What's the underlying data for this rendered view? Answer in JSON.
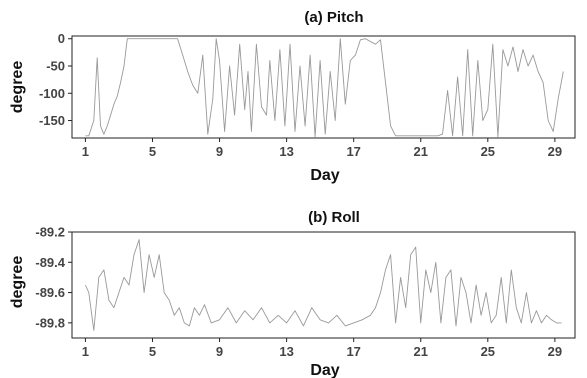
{
  "chart_data": [
    {
      "type": "line",
      "title": "(a) Pitch",
      "xlabel": "Day",
      "ylabel": "degree",
      "xlim": [
        0.2,
        30.2
      ],
      "ylim": [
        -182,
        5
      ],
      "xticks": [
        1,
        5,
        9,
        13,
        17,
        21,
        25,
        29
      ],
      "yticks": [
        0,
        -50,
        -100,
        -150
      ],
      "ytick_labels": [
        "0",
        "-50",
        "-100",
        "-150"
      ],
      "grid": false,
      "series": [
        {
          "color": "#999999",
          "x": [
            1,
            1.2,
            1.5,
            1.7,
            1.9,
            2.1,
            2.3,
            2.5,
            2.7,
            2.9,
            3.1,
            3.3,
            3.5,
            4,
            4.5,
            5,
            5.5,
            6,
            6.5,
            6.8,
            7.1,
            7.4,
            7.7,
            8.0,
            8.3,
            8.6,
            8.8,
            9.0,
            9.3,
            9.6,
            9.9,
            10.2,
            10.5,
            10.7,
            10.9,
            11.2,
            11.5,
            11.8,
            12.0,
            12.3,
            12.6,
            12.9,
            13.2,
            13.5,
            13.8,
            14.1,
            14.4,
            14.7,
            15.0,
            15.3,
            15.6,
            15.9,
            16.2,
            16.5,
            16.8,
            17.1,
            17.4,
            17.7,
            18.0,
            18.3,
            18.6,
            18.9,
            19.2,
            19.5,
            19.8,
            20.1,
            20.5,
            21,
            21.5,
            22,
            22.3,
            22.6,
            22.9,
            23.2,
            23.5,
            23.8,
            24.1,
            24.4,
            24.7,
            25.0,
            25.3,
            25.6,
            25.9,
            26.2,
            26.5,
            26.8,
            27.1,
            27.4,
            27.7,
            28.0,
            28.3,
            28.6,
            28.9,
            29.2,
            29.5
          ],
          "y": [
            -178,
            -178,
            -150,
            -35,
            -160,
            -175,
            -160,
            -140,
            -120,
            -105,
            -80,
            -50,
            0,
            0,
            0,
            0,
            0,
            0,
            0,
            -30,
            -60,
            -85,
            -100,
            -30,
            -175,
            -110,
            0,
            -40,
            -170,
            -50,
            -140,
            -10,
            -130,
            -60,
            -170,
            -10,
            -125,
            -140,
            -40,
            -150,
            -20,
            -160,
            -10,
            -170,
            -50,
            -160,
            -30,
            -180,
            -40,
            -175,
            -60,
            -150,
            0,
            -120,
            -40,
            -30,
            -2,
            0,
            -5,
            -10,
            -2,
            -80,
            -160,
            -178,
            -178,
            -178,
            -178,
            -178,
            -178,
            -178,
            -175,
            -95,
            -178,
            -70,
            -178,
            -20,
            -178,
            -40,
            -150,
            -130,
            -10,
            -180,
            -20,
            -50,
            -15,
            -60,
            -20,
            -50,
            -30,
            -60,
            -80,
            -150,
            -170,
            -110,
            -60
          ]
        }
      ]
    },
    {
      "type": "line",
      "title": "(b) Roll",
      "xlabel": "Day",
      "ylabel": "degree",
      "xlim": [
        0.2,
        30.2
      ],
      "ylim": [
        -89.9,
        -89.2
      ],
      "xticks": [
        1,
        5,
        9,
        13,
        17,
        21,
        25,
        29
      ],
      "yticks": [
        -89.2,
        -89.4,
        -89.6,
        -89.8
      ],
      "ytick_labels": [
        "-89.2",
        "-89.4",
        "-89.6",
        "-89.8"
      ],
      "grid": false,
      "series": [
        {
          "color": "#999999",
          "x": [
            1,
            1.2,
            1.5,
            1.8,
            2.1,
            2.4,
            2.7,
            3.0,
            3.3,
            3.6,
            3.9,
            4.2,
            4.5,
            4.8,
            5.1,
            5.4,
            5.7,
            6.0,
            6.3,
            6.6,
            6.9,
            7.2,
            7.5,
            7.8,
            8.1,
            8.5,
            9,
            9.5,
            10,
            10.5,
            11,
            11.5,
            12,
            12.5,
            13,
            13.5,
            14,
            14.5,
            15,
            15.5,
            16,
            16.5,
            17,
            17.5,
            18.0,
            18.3,
            18.6,
            18.9,
            19.2,
            19.5,
            19.8,
            20.1,
            20.4,
            20.7,
            21.0,
            21.3,
            21.6,
            21.9,
            22.2,
            22.5,
            22.8,
            23.1,
            23.4,
            23.7,
            24.0,
            24.3,
            24.6,
            24.9,
            25.2,
            25.5,
            25.8,
            26.1,
            26.4,
            26.7,
            27.0,
            27.3,
            27.6,
            27.9,
            28.2,
            28.5,
            28.8,
            29.1,
            29.4
          ],
          "y": [
            -89.55,
            -89.6,
            -89.85,
            -89.5,
            -89.45,
            -89.65,
            -89.7,
            -89.6,
            -89.5,
            -89.55,
            -89.35,
            -89.25,
            -89.6,
            -89.35,
            -89.5,
            -89.35,
            -89.6,
            -89.65,
            -89.75,
            -89.7,
            -89.8,
            -89.82,
            -89.7,
            -89.75,
            -89.68,
            -89.8,
            -89.78,
            -89.7,
            -89.8,
            -89.72,
            -89.78,
            -89.7,
            -89.8,
            -89.75,
            -89.8,
            -89.72,
            -89.82,
            -89.7,
            -89.78,
            -89.8,
            -89.75,
            -89.82,
            -89.8,
            -89.78,
            -89.75,
            -89.7,
            -89.6,
            -89.45,
            -89.35,
            -89.8,
            -89.5,
            -89.7,
            -89.35,
            -89.3,
            -89.8,
            -89.45,
            -89.6,
            -89.4,
            -89.8,
            -89.5,
            -89.45,
            -89.82,
            -89.5,
            -89.6,
            -89.8,
            -89.55,
            -89.75,
            -89.6,
            -89.8,
            -89.75,
            -89.5,
            -89.8,
            -89.45,
            -89.7,
            -89.8,
            -89.6,
            -89.8,
            -89.72,
            -89.8,
            -89.75,
            -89.78,
            -89.8,
            -89.8
          ]
        }
      ]
    }
  ]
}
